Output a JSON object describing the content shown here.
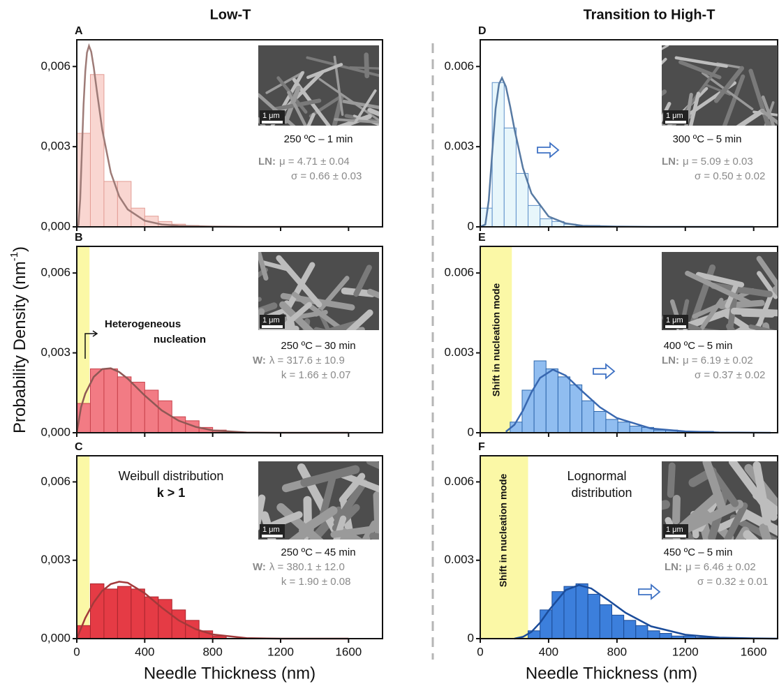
{
  "column_titles": [
    "Low-T",
    "Transition to High-T"
  ],
  "ylabel": {
    "text": "Probability Density (nm",
    "sup": "-1",
    "end": ")"
  },
  "chart_data": [
    {
      "type": "histogram",
      "panel": "A",
      "bins": [
        0,
        80,
        160,
        240,
        320,
        400,
        480,
        560,
        640,
        720
      ],
      "counts": [
        0.0035,
        0.0057,
        0.0017,
        0.0017,
        0.0007,
        0.0004,
        0.0002,
        0.0001,
        5e-05
      ],
      "color": "#f9d6d1",
      "edge_color": "#e39d95",
      "curve": {
        "color": "#9e7b77",
        "x": [
          0,
          10,
          20,
          30,
          40,
          50,
          60,
          72,
          85,
          100,
          120,
          150,
          200,
          250,
          300,
          400,
          500,
          600,
          800,
          1000,
          1200,
          1600
        ],
        "y": [
          0,
          8e-05,
          0.00104,
          0.00282,
          0.00457,
          0.00582,
          0.00652,
          0.00677,
          0.00655,
          0.00597,
          0.005,
          0.00363,
          0.00203,
          0.00114,
          0.00065,
          0.00023,
          9e-05,
          4e-05,
          1e-05,
          0,
          0,
          0
        ]
      },
      "xlim": [
        0,
        1800
      ],
      "ylim": [
        0,
        0.007
      ],
      "xticks": [
        0,
        400,
        800,
        1200,
        1600
      ],
      "show_xtick_labels": false,
      "yticks": [
        {
          "value": 0,
          "label": "0,000"
        },
        {
          "value": 0.003,
          "label": "0,003"
        },
        {
          "value": 0.006,
          "label": "0,006"
        }
      ],
      "scale_bar": "1 μm",
      "condition": "250 ºC – 1 min",
      "fit_label": "LN:",
      "fit_params": [
        "μ = 4.71 ± 0.04",
        "σ = 0.66 ± 0.03"
      ]
    },
    {
      "type": "histogram",
      "panel": "B",
      "bins": [
        0,
        80,
        160,
        240,
        320,
        400,
        480,
        560,
        640,
        720,
        800,
        880
      ],
      "counts": [
        0.0011,
        0.0024,
        0.0024,
        0.0021,
        0.0019,
        0.0016,
        0.0012,
        0.0006,
        0.00045,
        0.0002,
        0.0001
      ],
      "color": "#f27b84",
      "edge_color": "#c8434c",
      "shade": [
        0,
        75
      ],
      "curve": {
        "color": "#8f5855",
        "x": [
          0,
          25,
          50,
          100,
          150,
          200,
          250,
          300,
          400,
          500,
          600,
          700,
          800,
          1000,
          1200,
          1600
        ],
        "y": [
          0,
          0.00096,
          0.00147,
          0.0021,
          0.00239,
          0.00242,
          0.00228,
          0.00203,
          0.0014,
          0.00084,
          0.00045,
          0.00022,
          9e-05,
          1e-05,
          0,
          0
        ]
      },
      "xlim": [
        0,
        1800
      ],
      "ylim": [
        0,
        0.007
      ],
      "xticks": [
        0,
        400,
        800,
        1200,
        1600
      ],
      "show_xtick_labels": false,
      "yticks": [
        {
          "value": 0,
          "label": "0,000"
        },
        {
          "value": 0.003,
          "label": "0,003"
        },
        {
          "value": 0.006,
          "label": "0,006"
        }
      ],
      "scale_bar": "1 μm",
      "condition": "250 ºC – 30 min",
      "fit_label": "W:",
      "fit_params": [
        "λ = 317.6 ± 10.9",
        "k = 1.66 ± 0.07"
      ],
      "notes": [
        "Heterogeneous",
        "nucleation"
      ]
    },
    {
      "type": "histogram",
      "panel": "C",
      "bins": [
        0,
        80,
        160,
        240,
        320,
        400,
        480,
        560,
        640,
        720,
        800,
        880
      ],
      "counts": [
        0.0005,
        0.0021,
        0.0019,
        0.002,
        0.0019,
        0.0016,
        0.0015,
        0.0011,
        0.0007,
        0.0003,
        0.0001
      ],
      "color": "#e53b45",
      "edge_color": "#a9262e",
      "shade": [
        0,
        75
      ],
      "curve": {
        "color": "#a3393a",
        "x": [
          0,
          50,
          100,
          150,
          200,
          250,
          300,
          400,
          500,
          600,
          700,
          800,
          1000,
          1200,
          1600
        ],
        "y": [
          0,
          0.00079,
          0.00139,
          0.00183,
          0.00209,
          0.00218,
          0.00214,
          0.00174,
          0.00119,
          0.0007,
          0.00036,
          0.00016,
          2e-05,
          0,
          0
        ]
      },
      "xlim": [
        0,
        1800
      ],
      "ylim": [
        0,
        0.007
      ],
      "xticks": [
        0,
        400,
        800,
        1200,
        1600
      ],
      "show_xtick_labels": true,
      "yticks": [
        {
          "value": 0,
          "label": "0,000"
        },
        {
          "value": 0.003,
          "label": "0,003"
        },
        {
          "value": 0.006,
          "label": "0,006"
        }
      ],
      "xlabel": "Needle Thickness (nm)",
      "scale_bar": "1 μm",
      "condition": "250 ºC – 45 min",
      "fit_label": "W:",
      "fit_params": [
        "λ  = 380.1  ± 12.0",
        "k = 1.90 ± 0.08"
      ],
      "notes": [
        "Weibull distribution",
        "k > 1"
      ]
    },
    {
      "type": "histogram",
      "panel": "D",
      "bins": [
        0,
        70,
        140,
        210,
        280,
        350,
        420,
        490,
        560,
        630,
        700
      ],
      "counts": [
        0.0007,
        0.0054,
        0.0037,
        0.002,
        0.0008,
        0.0003,
        0.0002,
        0.0001,
        3e-05,
        5e-05
      ],
      "color": "#e7f6fb",
      "edge_color": "#5d8fc9",
      "curve": {
        "color": "#577aa3",
        "x": [
          0,
          30,
          50,
          70,
          90,
          110,
          127,
          150,
          175,
          200,
          250,
          300,
          400,
          500,
          600,
          800,
          1000,
          1600
        ],
        "y": [
          0,
          9e-05,
          0.00099,
          0.00276,
          0.00442,
          0.00535,
          0.00557,
          0.00525,
          0.00451,
          0.00366,
          0.0022,
          0.00125,
          0.00039,
          0.00013,
          4e-05,
          1e-05,
          0,
          0
        ]
      },
      "xlim": [
        0,
        1740
      ],
      "ylim": [
        0,
        0.007
      ],
      "xticks": [
        0,
        400,
        800,
        1200,
        1600
      ],
      "show_xtick_labels": false,
      "yticks": [
        0,
        0.003,
        0.006
      ],
      "scale_bar": "1 μm",
      "condition": "300 ºC – 5 min",
      "fit_label": "LN:",
      "fit_params": [
        "μ = 5.09 ± 0.03",
        "σ = 0.50 ± 0.02"
      ]
    },
    {
      "type": "histogram",
      "panel": "E",
      "bins": [
        175,
        245,
        315,
        385,
        455,
        525,
        595,
        665,
        735,
        805,
        875,
        945,
        1015,
        1085,
        1155,
        1225,
        1295,
        1365
      ],
      "counts": [
        0.0004,
        0.0016,
        0.0027,
        0.0024,
        0.0021,
        0.0018,
        0.0012,
        0.0008,
        0.0005,
        0.0004,
        0.00025,
        0.0002,
        0.0001,
        0.0001,
        5e-05,
        5e-05,
        5e-05
      ],
      "color": "#90bdf0",
      "edge_color": "#2f68ad",
      "shade": [
        0,
        185
      ],
      "curve": {
        "color": "#3968b0",
        "x": [
          150,
          200,
          250,
          300,
          350,
          425,
          500,
          600,
          700,
          800,
          1000,
          1200,
          1400,
          1700
        ],
        "y": [
          4e-05,
          0.0003,
          0.00084,
          0.00152,
          0.00206,
          0.00237,
          0.00215,
          0.00154,
          0.00096,
          0.00055,
          0.00016,
          5e-05,
          1e-05,
          0
        ]
      },
      "xlim": [
        0,
        1740
      ],
      "ylim": [
        0,
        0.007
      ],
      "xticks": [
        0,
        400,
        800,
        1200,
        1600
      ],
      "show_xtick_labels": false,
      "yticks": [
        0,
        0.003,
        0.006
      ],
      "scale_bar": "1 μm",
      "condition": "400 ºC – 5 min",
      "fit_label": "LN:",
      "fit_params": [
        "μ = 6.19 ± 0.02",
        "σ = 0.37 ± 0.02"
      ],
      "notes": [
        "Shift in nucleation mode"
      ]
    },
    {
      "type": "histogram",
      "panel": "F",
      "bins": [
        280,
        350,
        420,
        490,
        560,
        630,
        700,
        770,
        840,
        910,
        980,
        1050,
        1120,
        1190,
        1260,
        1330,
        1400
      ],
      "counts": [
        0.0003,
        0.0011,
        0.0018,
        0.002,
        0.0021,
        0.0017,
        0.0013,
        0.0009,
        0.0007,
        0.0005,
        0.0003,
        0.0002,
        0.0001,
        0.0001,
        5e-05,
        3e-05
      ],
      "color": "#3c7fdc",
      "edge_color": "#1c4c96",
      "shade": [
        0,
        280
      ],
      "curve": {
        "color": "#1b4c9a",
        "x": [
          200,
          250,
          300,
          350,
          400,
          500,
          577,
          650,
          750,
          850,
          1000,
          1200,
          1400,
          1600,
          1740
        ],
        "y": [
          0,
          7e-05,
          0.00026,
          0.00061,
          0.00107,
          0.00186,
          0.00205,
          0.00192,
          0.00147,
          0.00099,
          0.00047,
          0.00015,
          4e-05,
          1e-05,
          0
        ]
      },
      "xlim": [
        0,
        1740
      ],
      "ylim": [
        0,
        0.007
      ],
      "xticks": [
        0,
        400,
        800,
        1200,
        1600
      ],
      "show_xtick_labels": true,
      "yticks": [
        0,
        0.003,
        0.006
      ],
      "xlabel": "Needle Thickness (nm)",
      "scale_bar": "1 μm",
      "condition": "450 ºC – 5 min",
      "fit_label": "LN:",
      "fit_params": [
        "μ = 6.46 ± 0.02",
        "σ = 0.32 ± 0.01"
      ],
      "notes": [
        "Shift in nucleation mode",
        "Lognormal",
        "distribution"
      ]
    }
  ]
}
